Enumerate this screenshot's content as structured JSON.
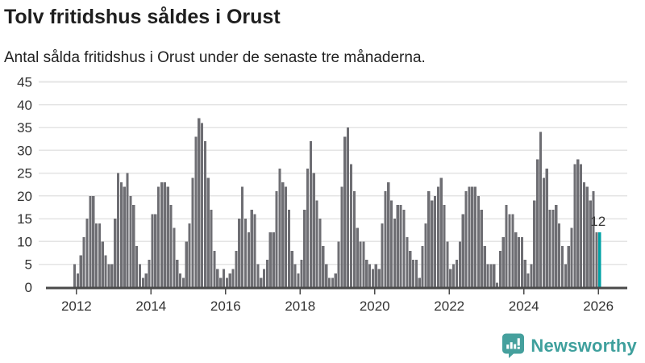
{
  "title": "Tolv fritidshus såldes i Orust",
  "subtitle": "Antal sålda fritidshus i Orust under de senaste tre månaderna.",
  "branding": {
    "name": "Newsworthy",
    "icon": "newsworthy-chart-bubble-icon"
  },
  "colors": {
    "bar": "#6e6e73",
    "highlight": "#00a2a6",
    "grid": "#e4e4e4",
    "axis": "#4a4a4a",
    "tick_text": "#333333",
    "label_text": "#3a3a3a",
    "title_text": "#1f1f1f",
    "logo_teal": "#45a09d"
  },
  "chart_data": {
    "type": "bar",
    "title": "Tolv fritidshus såldes i Orust",
    "subtitle": "Antal sålda fritidshus i Orust under de senaste tre månaderna.",
    "frequency": "monthly",
    "x_start": "2011-12",
    "x_end": "2026-01",
    "ylim": [
      0,
      45
    ],
    "grid": true,
    "yticks": [
      0,
      5,
      10,
      15,
      20,
      25,
      30,
      35,
      40,
      45
    ],
    "xticks": [
      "2012",
      "2014",
      "2016",
      "2018",
      "2020",
      "2022",
      "2024",
      "2026"
    ],
    "xtick_month_indices": [
      1,
      25,
      49,
      73,
      97,
      121,
      145,
      169
    ],
    "values": [
      5,
      3,
      7,
      11,
      15,
      20,
      20,
      14,
      14,
      10,
      7,
      5,
      5,
      15,
      25,
      23,
      22,
      25,
      20,
      18,
      9,
      5,
      2,
      3,
      6,
      16,
      16,
      22,
      23,
      23,
      22,
      18,
      13,
      6,
      3,
      2,
      10,
      14,
      24,
      33,
      37,
      36,
      32,
      24,
      17,
      8,
      4,
      2,
      4,
      2,
      3,
      4,
      8,
      15,
      22,
      15,
      12,
      17,
      16,
      5,
      2,
      4,
      6,
      12,
      12,
      21,
      26,
      23,
      22,
      17,
      8,
      5,
      3,
      6,
      17,
      26,
      32,
      25,
      19,
      15,
      9,
      5,
      2,
      2,
      3,
      10,
      22,
      33,
      35,
      27,
      21,
      13,
      10,
      10,
      6,
      5,
      4,
      5,
      4,
      14,
      21,
      23,
      19,
      15,
      18,
      18,
      17,
      11,
      8,
      6,
      6,
      2,
      9,
      14,
      21,
      19,
      20,
      22,
      24,
      18,
      10,
      4,
      5,
      6,
      10,
      16,
      21,
      22,
      22,
      22,
      20,
      17,
      9,
      5,
      5,
      5,
      1,
      8,
      11,
      18,
      16,
      16,
      12,
      11,
      11,
      6,
      3,
      5,
      19,
      28,
      34,
      24,
      26,
      17,
      17,
      18,
      14,
      9,
      5,
      9,
      13,
      27,
      28,
      27,
      23,
      22,
      19,
      21,
      12,
      12
    ],
    "highlight": {
      "index": 169,
      "value": 12,
      "label": "12"
    }
  }
}
